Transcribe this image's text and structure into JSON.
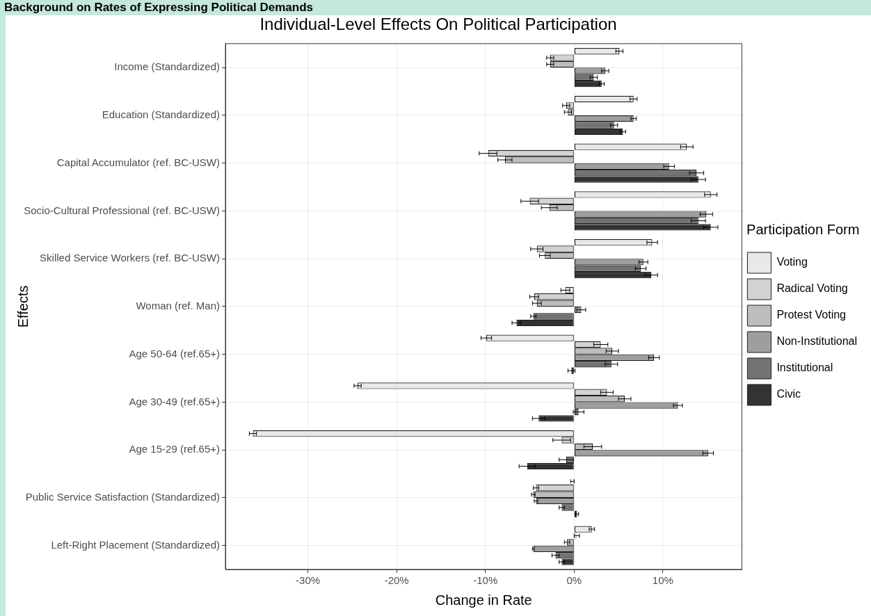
{
  "chart_data": {
    "type": "bar",
    "orientation": "horizontal",
    "title": "Individual-Level Effects On Political Participation",
    "xlabel": "Change in Rate",
    "ylabel": "Effects",
    "legend_title": "Participation Form",
    "legend": "right",
    "grid": true,
    "annotations": [
      "Background on Rates of Expressing Political Demands"
    ],
    "categories": [
      "Income (Standardized)",
      "Education (Standardized)",
      "Capital Accumulator (ref. BC-USW)",
      "Socio-Cultural Professional (ref. BC-USW)",
      "Skilled Service Workers (ref. BC-USW)",
      "Woman (ref. Man)",
      "Age 50-64 (ref.65+)",
      "Age 30-49 (ref.65+)",
      "Age 15-29 (ref.65+)",
      "Public Service Satisfaction (Standardized)",
      "Left-Right Placement (Standardized)"
    ],
    "xlim": [
      -39.3,
      18.9
    ],
    "xticks": [
      {
        "value": -30,
        "label": "-30%"
      },
      {
        "value": -20,
        "label": "-20%"
      },
      {
        "value": -10,
        "label": "-10%"
      },
      {
        "value": 0,
        "label": "0%"
      },
      {
        "value": 10,
        "label": "10%"
      }
    ],
    "series": [
      {
        "name": "Voting",
        "color": "#e8e8e8",
        "values": [
          5.1,
          6.7,
          12.7,
          15.4,
          8.8,
          -1.0,
          -9.9,
          -24.4,
          -36.2,
          -0.2,
          2.0
        ],
        "errors": [
          0.4,
          0.4,
          0.7,
          0.7,
          0.6,
          0.5,
          0.6,
          0.4,
          0.4,
          0.2,
          0.3
        ]
      },
      {
        "name": "Radical Voting",
        "color": "#d3d3d3",
        "values": [
          -2.7,
          -0.9,
          -9.7,
          -5.0,
          -4.2,
          -4.5,
          3.0,
          3.7,
          -1.4,
          -4.3,
          0.3
        ],
        "errors": [
          0.4,
          0.4,
          1.0,
          1.0,
          0.7,
          0.5,
          0.8,
          0.7,
          1.0,
          0.3,
          0.3
        ]
      },
      {
        "name": "Protest Voting",
        "color": "#bdbdbd",
        "values": [
          -2.7,
          -0.7,
          -7.8,
          -2.8,
          -3.3,
          -4.2,
          4.3,
          5.7,
          2.1,
          -4.6,
          -0.8
        ],
        "errors": [
          0.4,
          0.4,
          0.8,
          0.9,
          0.6,
          0.5,
          0.7,
          0.7,
          1.0,
          0.2,
          0.3
        ]
      },
      {
        "name": "Non-Institutional",
        "color": "#9e9e9e",
        "values": [
          3.5,
          6.7,
          10.7,
          14.9,
          7.8,
          0.8,
          9.0,
          11.7,
          15.1,
          -4.3,
          -4.6
        ],
        "errors": [
          0.4,
          0.3,
          0.6,
          0.7,
          0.5,
          0.5,
          0.6,
          0.5,
          0.6,
          0.2,
          0.1
        ]
      },
      {
        "name": "Institutional",
        "color": "#737373",
        "values": [
          2.2,
          4.5,
          13.8,
          14.0,
          7.5,
          -4.6,
          4.2,
          0.5,
          -0.9,
          -1.4,
          -2.1
        ],
        "errors": [
          0.4,
          0.4,
          0.8,
          0.8,
          0.6,
          0.3,
          0.7,
          0.6,
          0.8,
          0.3,
          0.4
        ]
      },
      {
        "name": "Civic",
        "color": "#333333",
        "values": [
          3.1,
          5.5,
          14.0,
          15.4,
          8.7,
          -6.5,
          -0.3,
          -4.0,
          -5.3,
          0.3,
          -1.4
        ],
        "errors": [
          0.3,
          0.3,
          0.8,
          0.8,
          0.7,
          0.5,
          0.4,
          0.7,
          0.9,
          0.2,
          0.3
        ]
      }
    ]
  }
}
